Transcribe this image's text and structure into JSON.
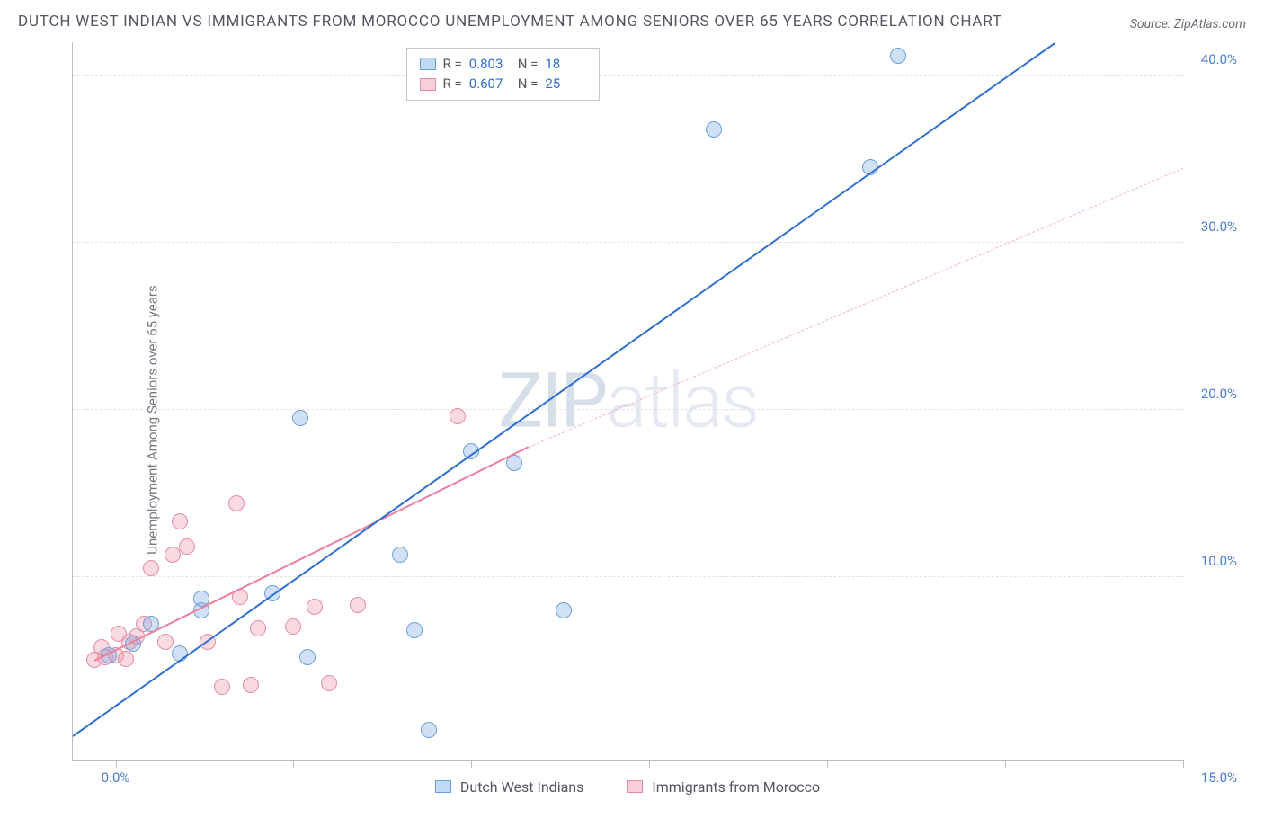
{
  "header": {
    "title": "DUTCH WEST INDIAN VS IMMIGRANTS FROM MOROCCO UNEMPLOYMENT AMONG SENIORS OVER 65 YEARS CORRELATION CHART",
    "source": "Source: ZipAtlas.com"
  },
  "watermark": {
    "bold": "ZIP",
    "thin": "atlas"
  },
  "chart": {
    "type": "scatter",
    "y_axis_label": "Unemployment Among Seniors over 65 years",
    "xlim": [
      -0.6,
      15.0
    ],
    "ylim": [
      -1.0,
      42.0
    ],
    "x_ticks": [
      0.0,
      2.5,
      5.0,
      7.5,
      10.0,
      12.5,
      15.0
    ],
    "x_tick_labels": {
      "0": "0.0%",
      "15": "15.0%"
    },
    "y_ticks": [
      10.0,
      20.0,
      30.0,
      40.0
    ],
    "y_tick_labels": [
      "10.0%",
      "20.0%",
      "30.0%",
      "40.0%"
    ],
    "grid_color": "#e1e1e6",
    "axis_color": "#bbbbc2",
    "background_color": "#ffffff",
    "series": {
      "blue": {
        "label": "Dutch West Indians",
        "color_fill": "rgba(120,170,230,0.35)",
        "color_stroke": "#6c9fda",
        "R": "0.803",
        "N": "18",
        "points": [
          [
            -0.1,
            5.3
          ],
          [
            0.25,
            6.0
          ],
          [
            0.9,
            5.4
          ],
          [
            1.2,
            8.0
          ],
          [
            1.2,
            8.7
          ],
          [
            2.2,
            9.0
          ],
          [
            2.6,
            19.5
          ],
          [
            2.7,
            5.2
          ],
          [
            4.0,
            11.3
          ],
          [
            4.2,
            6.8
          ],
          [
            4.4,
            0.8
          ],
          [
            5.0,
            17.5
          ],
          [
            5.6,
            16.8
          ],
          [
            6.3,
            8.0
          ],
          [
            8.4,
            36.8
          ],
          [
            10.6,
            34.5
          ],
          [
            11.0,
            41.2
          ],
          [
            0.5,
            7.2
          ]
        ],
        "trend": {
          "x1": -0.6,
          "y1": 0.5,
          "x2": 13.2,
          "y2": 42.0,
          "color": "#2f6fd0",
          "width": 2.5
        }
      },
      "pink": {
        "label": "Immigrants from Morocco",
        "color_fill": "rgba(240,150,170,0.35)",
        "color_stroke": "#e58ca2",
        "R": "0.607",
        "N": "25",
        "points": [
          [
            -0.3,
            5.0
          ],
          [
            -0.2,
            5.8
          ],
          [
            -0.15,
            5.2
          ],
          [
            0.0,
            5.3
          ],
          [
            0.05,
            6.6
          ],
          [
            0.15,
            5.1
          ],
          [
            0.2,
            6.1
          ],
          [
            0.3,
            6.4
          ],
          [
            0.4,
            7.2
          ],
          [
            0.5,
            10.5
          ],
          [
            0.7,
            6.1
          ],
          [
            0.8,
            11.3
          ],
          [
            0.9,
            13.3
          ],
          [
            1.0,
            11.8
          ],
          [
            1.3,
            6.1
          ],
          [
            1.5,
            3.4
          ],
          [
            1.7,
            14.4
          ],
          [
            1.75,
            8.8
          ],
          [
            1.9,
            3.5
          ],
          [
            2.0,
            6.9
          ],
          [
            2.5,
            7.0
          ],
          [
            2.8,
            8.2
          ],
          [
            3.0,
            3.6
          ],
          [
            3.4,
            8.3
          ],
          [
            4.8,
            19.6
          ]
        ],
        "trend_solid": {
          "x1": -0.3,
          "y1": 5.0,
          "x2": 5.8,
          "y2": 17.8,
          "color": "#ef7f9a",
          "width": 2
        },
        "trend_dash": {
          "x1": 5.8,
          "y1": 17.8,
          "x2": 15.0,
          "y2": 34.5,
          "color": "#f3b3c2",
          "width": 1.5
        }
      }
    },
    "legend_box": {
      "rows": [
        {
          "swatch": "blue",
          "r_label": "R =",
          "r_val": "0.803",
          "n_label": "N =",
          "n_val": "18"
        },
        {
          "swatch": "pink",
          "r_label": "R =",
          "r_val": "0.607",
          "n_label": "N =",
          "n_val": "25"
        }
      ]
    }
  }
}
